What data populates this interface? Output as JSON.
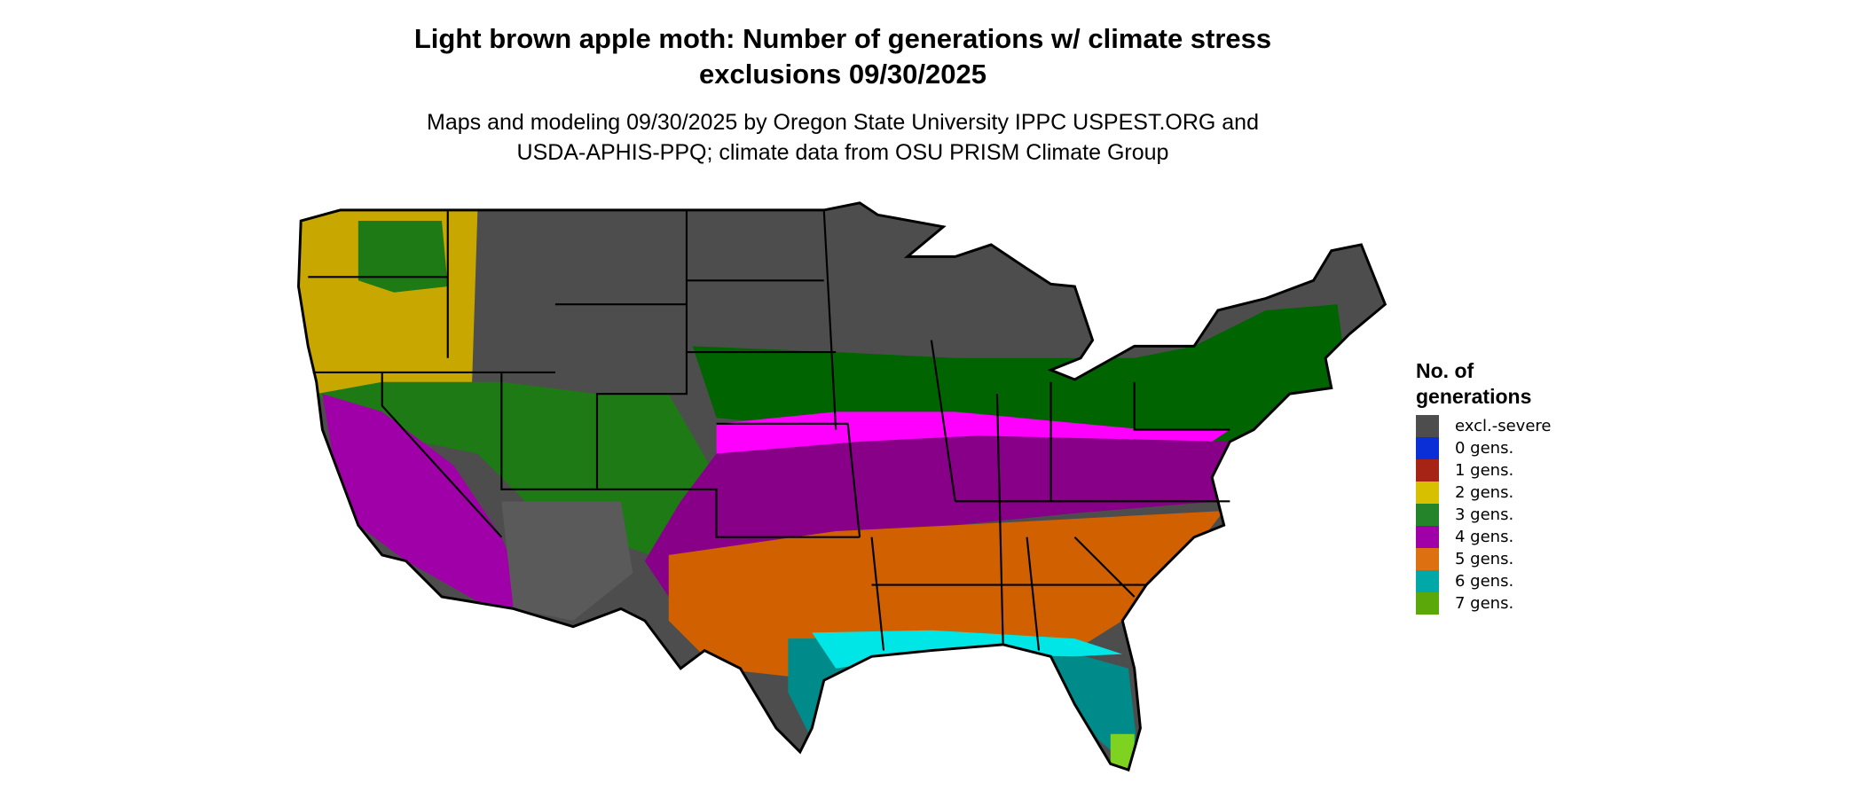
{
  "title": {
    "line1": "Light brown apple moth: Number of generations w/ climate stress",
    "line2": "exclusions 09/30/2025"
  },
  "subtitle": {
    "line1": "Maps and modeling 09/30/2025 by Oregon State University IPPC USPEST.ORG and",
    "line2": "USDA-APHIS-PPQ; climate data from OSU PRISM Climate Group"
  },
  "map": {
    "region": "Contiguous United States",
    "border_color": "#000000"
  },
  "legend": {
    "title_line1": "No. of",
    "title_line2": "generations",
    "items": [
      {
        "label": "excl.-severe",
        "color": "#4d4d4d"
      },
      {
        "label": "0 gens.",
        "color": "#0a2fd6"
      },
      {
        "label": "1 gens.",
        "color": "#a52414"
      },
      {
        "label": "2 gens.",
        "color": "#d6c000"
      },
      {
        "label": "3 gens.",
        "color": "#23842a"
      },
      {
        "label": "4 gens.",
        "color": "#a000a8"
      },
      {
        "label": "5 gens.",
        "color": "#dd7011"
      },
      {
        "label": "6 gens.",
        "color": "#00a8a8"
      },
      {
        "label": "7 gens.",
        "color": "#5aa80a"
      }
    ]
  }
}
